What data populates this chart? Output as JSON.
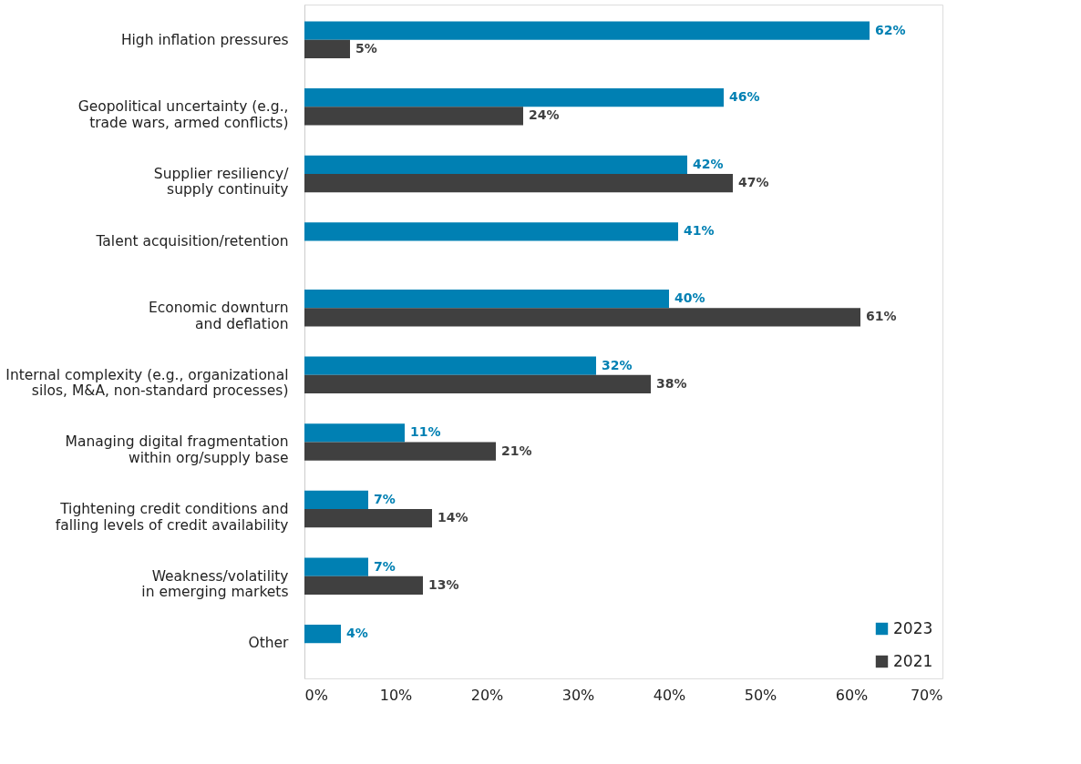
{
  "chart_data": {
    "type": "bar",
    "orientation": "horizontal",
    "categories": [
      "High inflation pressures",
      "Geopolitical uncertainty (e.g.,\ntrade wars, armed conflicts)",
      "Supplier resiliency/\nsupply continuity",
      "Talent acquisition/retention",
      "Economic downturn\nand deflation",
      "Internal complexity (e.g., organizational\nsilos, M&A, non-standard processes)",
      "Managing digital fragmentation\nwithin org/supply base",
      "Tightening credit conditions and\nfalling levels of credit availability",
      "Weakness/volatility\nin emerging markets",
      "Other"
    ],
    "series": [
      {
        "name": "2023",
        "color": "#0080b3",
        "values": [
          62,
          46,
          42,
          41,
          40,
          32,
          11,
          7,
          7,
          4
        ],
        "value_labels": [
          "62%",
          "46%",
          "42%",
          "41%",
          "40%",
          "32%",
          "11%",
          "7%",
          "7%",
          "4%"
        ]
      },
      {
        "name": "2021",
        "color": "#404040",
        "values": [
          5,
          24,
          47,
          null,
          61,
          38,
          21,
          14,
          13,
          null
        ],
        "value_labels": [
          "5%",
          "24%",
          "47%",
          null,
          "61%",
          "38%",
          "21%",
          "14%",
          "13%",
          null
        ]
      }
    ],
    "xlim": [
      0,
      70
    ],
    "xticks": [
      {
        "value": 0,
        "label": "0%"
      },
      {
        "value": 10,
        "label": "10%"
      },
      {
        "value": 20,
        "label": "20%"
      },
      {
        "value": 30,
        "label": "30%"
      },
      {
        "value": 40,
        "label": "40%"
      },
      {
        "value": 50,
        "label": "50%"
      },
      {
        "value": 60,
        "label": "60%"
      },
      {
        "value": 70,
        "label": "70%"
      }
    ],
    "legend": "bottom right",
    "grid": false
  }
}
